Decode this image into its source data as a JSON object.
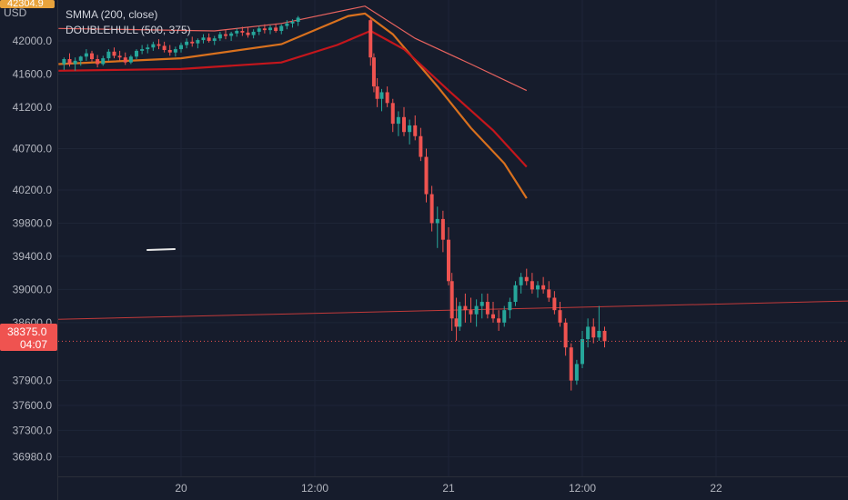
{
  "currency": "USD",
  "indicators": [
    {
      "label": "SMMA (200, close)"
    },
    {
      "label": "DOUBLEHULL (500, 375)"
    }
  ],
  "last_price_label": "38375.0",
  "countdown_label": "04:07",
  "top_price_label": "42304.9",
  "colors": {
    "background": "#161c2c",
    "up": "#26a69a",
    "down": "#ef5350",
    "smma": "#e8635f",
    "hull_a": "#d9711e",
    "hull_b": "#c4161c",
    "price_line": "#ef5350",
    "trend_line": "#c23a3a"
  },
  "chart_data": {
    "type": "candlestick",
    "y_ticks": [
      "42000.0",
      "41600.0",
      "41200.0",
      "40700.0",
      "40200.0",
      "39800.0",
      "39400.0",
      "39000.0",
      "38600.0",
      "37900.0",
      "37600.0",
      "37300.0",
      "36980.0"
    ],
    "y_tick_values": [
      42000,
      41600,
      41200,
      40700,
      40200,
      39800,
      39400,
      39000,
      38600,
      37900,
      37600,
      37300,
      36980
    ],
    "x_ticks": [
      "20",
      "12:00",
      "21",
      "12:00",
      "22"
    ],
    "x_tick_hours": [
      0,
      12,
      24,
      36,
      48
    ],
    "ylim": [
      36700,
      42230
    ],
    "last_price": 38375,
    "series": [
      {
        "name": "SMMA (200, close)",
        "points": [
          [
            -11,
            42150
          ],
          [
            3,
            42120
          ],
          [
            9,
            42210
          ],
          [
            16.5,
            42420
          ],
          [
            21,
            42030
          ],
          [
            26,
            41720
          ],
          [
            31,
            41400
          ]
        ]
      },
      {
        "name": "DOUBLEHULL (500, 375)",
        "color_key": "hull_a",
        "points": [
          [
            -11,
            41720
          ],
          [
            0,
            41790
          ],
          [
            9,
            41960
          ],
          [
            15,
            42300
          ],
          [
            16.5,
            42330
          ],
          [
            19,
            42080
          ],
          [
            23,
            41450
          ],
          [
            26,
            40950
          ],
          [
            29,
            40520
          ],
          [
            31,
            40100
          ]
        ]
      },
      {
        "name": "DOUBLEHULL (500, 375)",
        "color_key": "hull_b",
        "points": [
          [
            -11,
            41640
          ],
          [
            0,
            41660
          ],
          [
            9,
            41740
          ],
          [
            14,
            41950
          ],
          [
            17,
            42120
          ],
          [
            20,
            41900
          ],
          [
            24,
            41400
          ],
          [
            28,
            40920
          ],
          [
            31,
            40480
          ]
        ]
      }
    ],
    "trend_line": [
      [
        -11,
        38640
      ],
      [
        48,
        38860
      ]
    ],
    "candles": [
      [
        -10.5,
        41720,
        41800,
        41650,
        41780
      ],
      [
        -10,
        41780,
        41850,
        41690,
        41720
      ],
      [
        -9.5,
        41720,
        41800,
        41640,
        41760
      ],
      [
        -9,
        41760,
        41820,
        41700,
        41810
      ],
      [
        -8.5,
        41810,
        41900,
        41760,
        41850
      ],
      [
        -8,
        41850,
        41880,
        41750,
        41780
      ],
      [
        -7.5,
        41780,
        41830,
        41680,
        41720
      ],
      [
        -7,
        41720,
        41820,
        41700,
        41790
      ],
      [
        -6.5,
        41790,
        41900,
        41760,
        41870
      ],
      [
        -6,
        41870,
        41920,
        41790,
        41820
      ],
      [
        -5.5,
        41820,
        41880,
        41760,
        41800
      ],
      [
        -5,
        41800,
        41860,
        41710,
        41740
      ],
      [
        -4.5,
        41740,
        41830,
        41720,
        41810
      ],
      [
        -4,
        41810,
        41900,
        41780,
        41880
      ],
      [
        -3.5,
        41880,
        41950,
        41840,
        41900
      ],
      [
        -3,
        41900,
        41960,
        41850,
        41920
      ],
      [
        -2.5,
        41920,
        41990,
        41880,
        41960
      ],
      [
        -2,
        41960,
        42020,
        41900,
        41940
      ],
      [
        -1.5,
        41940,
        41990,
        41860,
        41890
      ],
      [
        -1,
        41890,
        41950,
        41820,
        41860
      ],
      [
        -0.5,
        41860,
        41930,
        41810,
        41900
      ],
      [
        0,
        41900,
        41980,
        41860,
        41950
      ],
      [
        0.5,
        41950,
        42030,
        41910,
        41990
      ],
      [
        1,
        41990,
        42050,
        41930,
        41970
      ],
      [
        1.5,
        41970,
        42030,
        41910,
        42010
      ],
      [
        2,
        42010,
        42080,
        41970,
        42040
      ],
      [
        2.5,
        42040,
        42090,
        41980,
        42000
      ],
      [
        3,
        42000,
        42060,
        41950,
        42030
      ],
      [
        3.5,
        42030,
        42110,
        42000,
        42080
      ],
      [
        4,
        42080,
        42130,
        42020,
        42060
      ],
      [
        4.5,
        42060,
        42110,
        42000,
        42090
      ],
      [
        5,
        42090,
        42150,
        42050,
        42120
      ],
      [
        5.5,
        42120,
        42170,
        42060,
        42100
      ],
      [
        6,
        42100,
        42160,
        42040,
        42070
      ],
      [
        6.5,
        42070,
        42140,
        42030,
        42110
      ],
      [
        7,
        42110,
        42180,
        42070,
        42150
      ],
      [
        7.5,
        42150,
        42200,
        42090,
        42130
      ],
      [
        8,
        42130,
        42190,
        42080,
        42160
      ],
      [
        8.5,
        42160,
        42210,
        42100,
        42120
      ],
      [
        9,
        42120,
        42200,
        42080,
        42180
      ],
      [
        9.5,
        42180,
        42250,
        42140,
        42210
      ],
      [
        10,
        42210,
        42260,
        42160,
        42230
      ],
      [
        10.5,
        42230,
        42300,
        42180,
        42280
      ],
      [
        17,
        42250,
        42290,
        41700,
        41800
      ],
      [
        17.3,
        41800,
        41850,
        41380,
        41450
      ],
      [
        17.6,
        41450,
        41550,
        41200,
        41300
      ],
      [
        18,
        41300,
        41420,
        41150,
        41380
      ],
      [
        18.5,
        41380,
        41450,
        41200,
        41250
      ],
      [
        19,
        41250,
        41300,
        40900,
        41000
      ],
      [
        19.5,
        41000,
        41150,
        40850,
        41080
      ],
      [
        20,
        41080,
        41200,
        40850,
        40900
      ],
      [
        20.5,
        40900,
        41050,
        40750,
        40980
      ],
      [
        21,
        40980,
        41100,
        40800,
        40850
      ],
      [
        21.5,
        40850,
        40950,
        40550,
        40600
      ],
      [
        22,
        40600,
        40700,
        40050,
        40150
      ],
      [
        22.5,
        40150,
        40250,
        39700,
        39800
      ],
      [
        23,
        39800,
        40000,
        39500,
        39850
      ],
      [
        23.5,
        39850,
        39950,
        39450,
        39600
      ],
      [
        24,
        39600,
        39750,
        39050,
        39100
      ],
      [
        24.3,
        39100,
        39200,
        38500,
        38650
      ],
      [
        24.7,
        38650,
        38900,
        38380,
        38550
      ],
      [
        25,
        38550,
        38850,
        38500,
        38800
      ],
      [
        25.5,
        38800,
        38950,
        38600,
        38750
      ],
      [
        26,
        38750,
        38900,
        38600,
        38700
      ],
      [
        26.5,
        38700,
        38880,
        38550,
        38800
      ],
      [
        27,
        38800,
        38950,
        38650,
        38850
      ],
      [
        27.5,
        38850,
        38950,
        38650,
        38700
      ],
      [
        28,
        38700,
        38850,
        38600,
        38650
      ],
      [
        28.5,
        38650,
        38750,
        38500,
        38600
      ],
      [
        29,
        38600,
        38800,
        38550,
        38750
      ],
      [
        29.5,
        38750,
        38900,
        38650,
        38850
      ],
      [
        30,
        38850,
        39100,
        38800,
        39050
      ],
      [
        30.5,
        39050,
        39200,
        38950,
        39150
      ],
      [
        31,
        39150,
        39250,
        39050,
        39100
      ],
      [
        31.5,
        39100,
        39200,
        38950,
        39000
      ],
      [
        32,
        39000,
        39100,
        38900,
        39050
      ],
      [
        32.5,
        39050,
        39150,
        38950,
        39000
      ],
      [
        33,
        39000,
        39100,
        38850,
        38900
      ],
      [
        33.5,
        38900,
        38980,
        38700,
        38750
      ],
      [
        34,
        38750,
        38850,
        38550,
        38600
      ],
      [
        34.5,
        38600,
        38650,
        38200,
        38300
      ],
      [
        35,
        38300,
        38350,
        37780,
        37900
      ],
      [
        35.5,
        37900,
        38150,
        37850,
        38100
      ],
      [
        36,
        38100,
        38500,
        38050,
        38400
      ],
      [
        36.5,
        38400,
        38650,
        38300,
        38550
      ],
      [
        37,
        38550,
        38650,
        38350,
        38420
      ],
      [
        37.5,
        38420,
        38800,
        38380,
        38500
      ],
      [
        38,
        38500,
        38550,
        38300,
        38375
      ]
    ]
  }
}
